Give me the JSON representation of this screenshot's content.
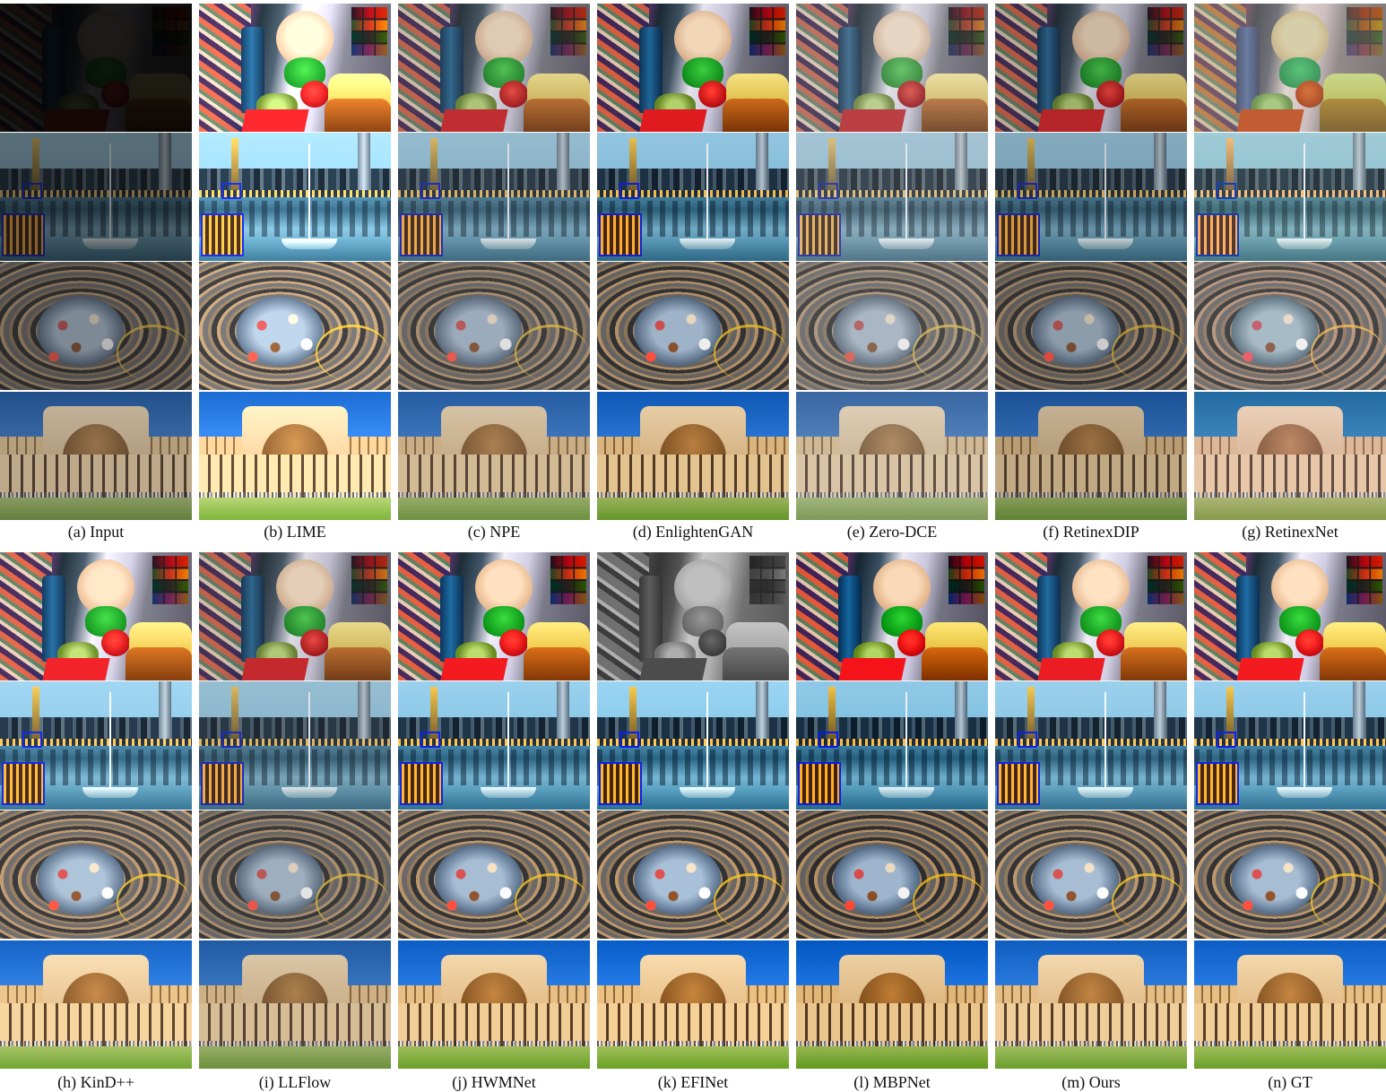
{
  "figure": {
    "top_panel_captions": [
      "(a) Input",
      "(b) LIME",
      "(c) NPE",
      "(d) EnlightenGAN",
      "(e) Zero-DCE",
      "(f) RetinexDIP",
      "(g) RetinexNet"
    ],
    "bottom_panel_captions": [
      "(h) KinD++",
      "(i) LLFlow",
      "(j) HWMNet",
      "(k) EFINet",
      "(l) MBPNet",
      "(m) Ours",
      "(n) GT"
    ],
    "scenes": [
      "toy-still-life",
      "city-lake",
      "spiral-staircase",
      "courtyard"
    ]
  }
}
